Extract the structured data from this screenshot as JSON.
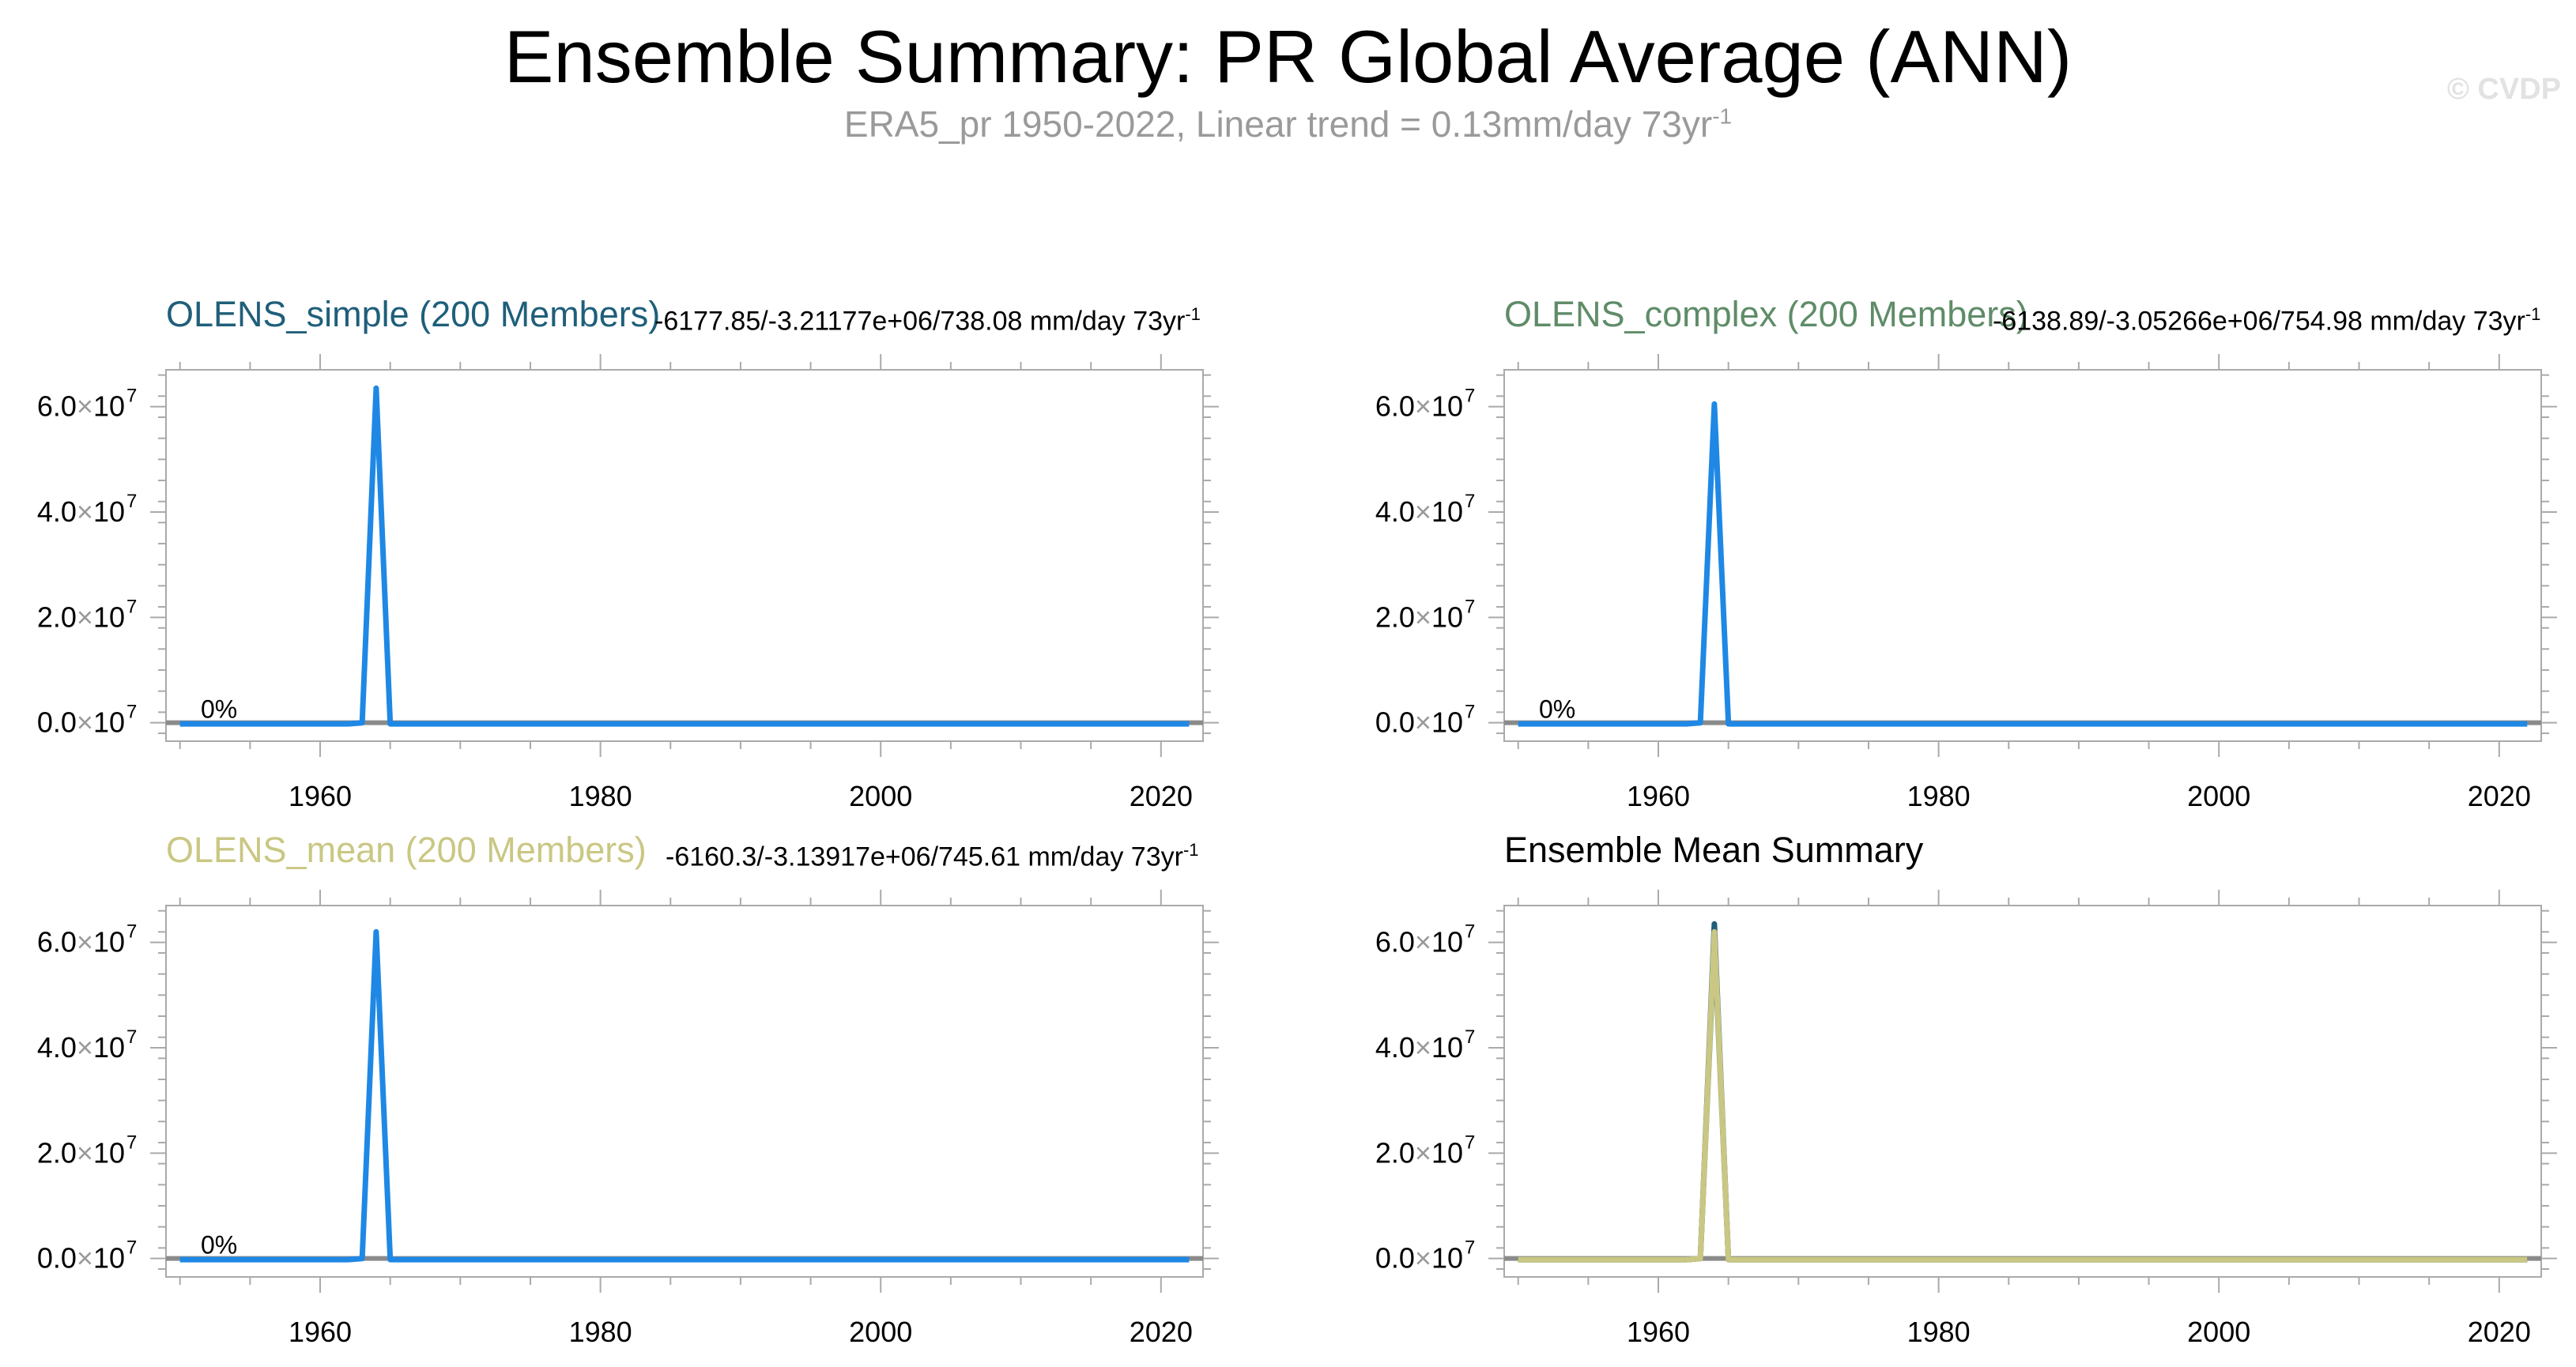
{
  "figure": {
    "title": "Ensemble Summary: PR Global Average (ANN)",
    "subtitle": "ERA5_pr 1950-2022, Linear trend = 0.13mm/day 73yr",
    "subtitle_exponent": "-1",
    "watermark": "© CVDP"
  },
  "colors": {
    "simple": "#1f5f7a",
    "complex": "#5f8c68",
    "mean": "#c9c783",
    "line_blue": "#1f88e5",
    "zero_line": "#8a8a8a",
    "frame": "#aaaaaa",
    "subtitle": "#9a9a9a"
  },
  "panels": [
    {
      "title": "OLENS_simple (200 Members)",
      "color_key": "simple",
      "stats": "-6177.85/-3.21177e+06/738.08 mm/day 73yr",
      "stats_exponent": "-1",
      "pct_label": "0%"
    },
    {
      "title": "OLENS_complex (200 Members)",
      "color_key": "complex",
      "stats": "-6138.89/-3.05266e+06/754.98 mm/day 73yr",
      "stats_exponent": "-1",
      "pct_label": "0%"
    },
    {
      "title": "OLENS_mean (200 Members)",
      "color_key": "mean",
      "stats": "-6160.3/-3.13917e+06/745.61 mm/day 73yr",
      "stats_exponent": "-1",
      "pct_label": "0%"
    },
    {
      "title": "Ensemble Mean Summary",
      "color_key": null,
      "stats": "",
      "stats_exponent": "",
      "pct_label": ""
    }
  ],
  "chart_data": [
    {
      "type": "line",
      "title": "OLENS_simple (200 Members)",
      "xlim": [
        1949,
        2023
      ],
      "ylim": [
        -3500000,
        67000000
      ],
      "x_ticks": [
        1960,
        1980,
        2000,
        2020
      ],
      "x_tick_labels": [
        "1960",
        "1980",
        "2000",
        "2020"
      ],
      "y_ticks": [
        0,
        20000000,
        40000000,
        60000000
      ],
      "y_tick_labels": [
        [
          "0.0",
          "7"
        ],
        [
          "2.0",
          "7"
        ],
        [
          "4.0",
          "7"
        ],
        [
          "6.0",
          "7"
        ]
      ],
      "zero_line": 0,
      "series": [
        {
          "color_key": "line_blue",
          "points": [
            [
              1950,
              -220000
            ],
            [
              1962,
              -220000
            ],
            [
              1963,
              0
            ],
            [
              1964,
              63500000
            ],
            [
              1965,
              -220000
            ],
            [
              2022,
              -220000
            ]
          ]
        }
      ]
    },
    {
      "type": "line",
      "title": "OLENS_complex (200 Members)",
      "xlim": [
        1949,
        2023
      ],
      "ylim": [
        -3500000,
        67000000
      ],
      "x_ticks": [
        1960,
        1980,
        2000,
        2020
      ],
      "x_tick_labels": [
        "1960",
        "1980",
        "2000",
        "2020"
      ],
      "y_ticks": [
        0,
        20000000,
        40000000,
        60000000
      ],
      "y_tick_labels": [
        [
          "0.0",
          "7"
        ],
        [
          "2.0",
          "7"
        ],
        [
          "4.0",
          "7"
        ],
        [
          "6.0",
          "7"
        ]
      ],
      "zero_line": 0,
      "series": [
        {
          "color_key": "line_blue",
          "points": [
            [
              1950,
              -220000
            ],
            [
              1962,
              -220000
            ],
            [
              1963,
              0
            ],
            [
              1964,
              60500000
            ],
            [
              1965,
              -220000
            ],
            [
              2022,
              -220000
            ]
          ]
        }
      ]
    },
    {
      "type": "line",
      "title": "OLENS_mean (200 Members)",
      "xlim": [
        1949,
        2023
      ],
      "ylim": [
        -3500000,
        67000000
      ],
      "x_ticks": [
        1960,
        1980,
        2000,
        2020
      ],
      "x_tick_labels": [
        "1960",
        "1980",
        "2000",
        "2020"
      ],
      "y_ticks": [
        0,
        20000000,
        40000000,
        60000000
      ],
      "y_tick_labels": [
        [
          "0.0",
          "7"
        ],
        [
          "2.0",
          "7"
        ],
        [
          "4.0",
          "7"
        ],
        [
          "6.0",
          "7"
        ]
      ],
      "zero_line": 0,
      "series": [
        {
          "color_key": "line_blue",
          "points": [
            [
              1950,
              -220000
            ],
            [
              1962,
              -220000
            ],
            [
              1963,
              0
            ],
            [
              1964,
              62000000
            ],
            [
              1965,
              -220000
            ],
            [
              2022,
              -220000
            ]
          ]
        }
      ]
    },
    {
      "type": "line",
      "title": "Ensemble Mean Summary",
      "xlim": [
        1949,
        2023
      ],
      "ylim": [
        -3500000,
        67000000
      ],
      "x_ticks": [
        1960,
        1980,
        2000,
        2020
      ],
      "x_tick_labels": [
        "1960",
        "1980",
        "2000",
        "2020"
      ],
      "y_ticks": [
        0,
        20000000,
        40000000,
        60000000
      ],
      "y_tick_labels": [
        [
          "0.0",
          "7"
        ],
        [
          "2.0",
          "7"
        ],
        [
          "4.0",
          "7"
        ],
        [
          "6.0",
          "7"
        ]
      ],
      "zero_line": 0,
      "series": [
        {
          "color_key": "simple",
          "points": [
            [
              1950,
              -220000
            ],
            [
              1962,
              -220000
            ],
            [
              1963,
              0
            ],
            [
              1964,
              63500000
            ],
            [
              1965,
              -220000
            ],
            [
              2022,
              -220000
            ]
          ]
        },
        {
          "color_key": "complex",
          "points": [
            [
              1950,
              -220000
            ],
            [
              1962,
              -220000
            ],
            [
              1963,
              0
            ],
            [
              1964,
              60500000
            ],
            [
              1965,
              -220000
            ],
            [
              2022,
              -220000
            ]
          ]
        },
        {
          "color_key": "mean",
          "points": [
            [
              1950,
              -220000
            ],
            [
              1962,
              -220000
            ],
            [
              1963,
              0
            ],
            [
              1964,
              62000000
            ],
            [
              1965,
              -220000
            ],
            [
              2022,
              -220000
            ]
          ]
        }
      ]
    }
  ]
}
